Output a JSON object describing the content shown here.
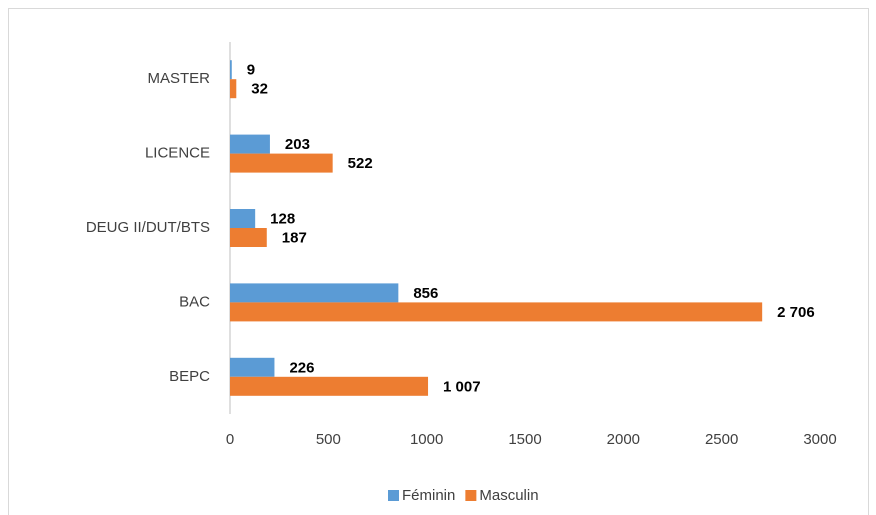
{
  "chart_data": {
    "type": "hbar",
    "categories": [
      "MASTER",
      "LICENCE",
      "DEUG II/DUT/BTS",
      "BAC",
      "BEPC"
    ],
    "series": [
      {
        "name": "Féminin",
        "color": "#5b9bd5",
        "values": [
          9,
          203,
          128,
          856,
          226
        ]
      },
      {
        "name": "Masculin",
        "color": "#ed7d31",
        "values": [
          32,
          522,
          187,
          2706,
          1007
        ],
        "value_labels": [
          "32",
          "522",
          "187",
          "2 706",
          "1 007"
        ]
      }
    ],
    "xlim": [
      0,
      3000
    ],
    "xticks": [
      0,
      500,
      1000,
      1500,
      2000,
      2500,
      3000
    ],
    "grid": false,
    "legend": "bottom"
  }
}
